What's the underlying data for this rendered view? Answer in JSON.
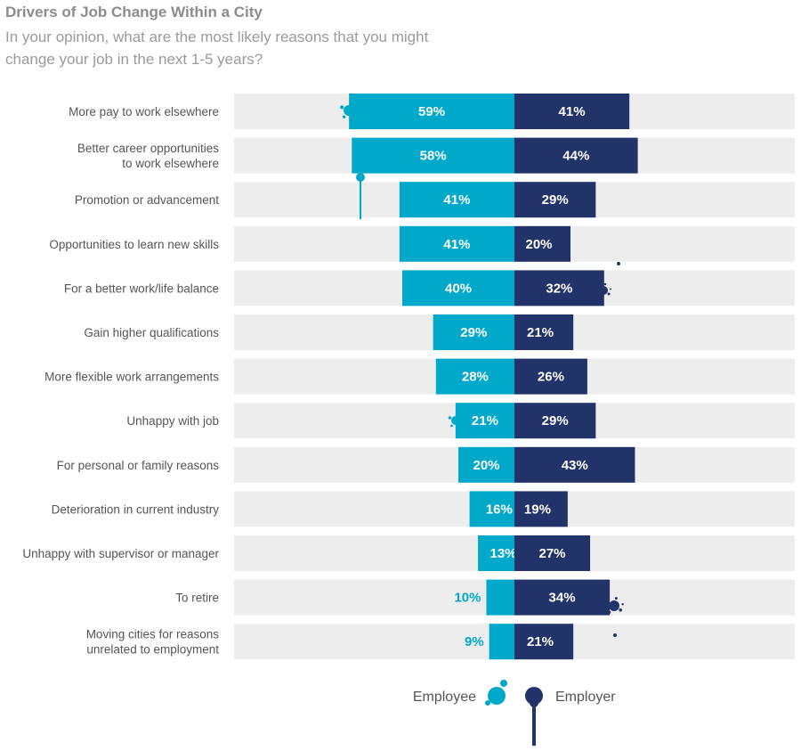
{
  "title": "Drivers of Job Change Within a City",
  "subtitle": "In your opinion, what are the most likely reasons that you might change your job in the next 1-5 years?",
  "colors": {
    "employee": "#00a9c9",
    "employer": "#22336a",
    "track": "#ededed",
    "label_light": "#ffffff",
    "employee_outside_label": "#00a9c9"
  },
  "chart_data": {
    "type": "bar",
    "orientation": "horizontal-diverging",
    "categories": [
      [
        "More pay to work elsewhere"
      ],
      [
        "Better career opportunities",
        "to work elsewhere"
      ],
      [
        "Promotion or advancement"
      ],
      [
        "Opportunities to learn new skills"
      ],
      [
        "For a better work/life balance"
      ],
      [
        "Gain higher qualifications"
      ],
      [
        "More flexible work arrangements"
      ],
      [
        "Unhappy with job"
      ],
      [
        "For personal or family reasons"
      ],
      [
        "Deterioration in current industry"
      ],
      [
        "Unhappy with supervisor or manager"
      ],
      [
        "To retire"
      ],
      [
        "Moving cities for reasons",
        "unrelated to employment"
      ]
    ],
    "series": [
      {
        "name": "Employee",
        "values": [
          59,
          58,
          41,
          41,
          40,
          29,
          28,
          21,
          20,
          16,
          13,
          10,
          9
        ]
      },
      {
        "name": "Employer",
        "values": [
          41,
          44,
          29,
          20,
          32,
          21,
          26,
          29,
          43,
          19,
          27,
          34,
          21
        ]
      }
    ],
    "value_suffix": "%",
    "legend": [
      "Employee",
      "Employer"
    ],
    "legend_position": "bottom-center",
    "grid": false
  }
}
